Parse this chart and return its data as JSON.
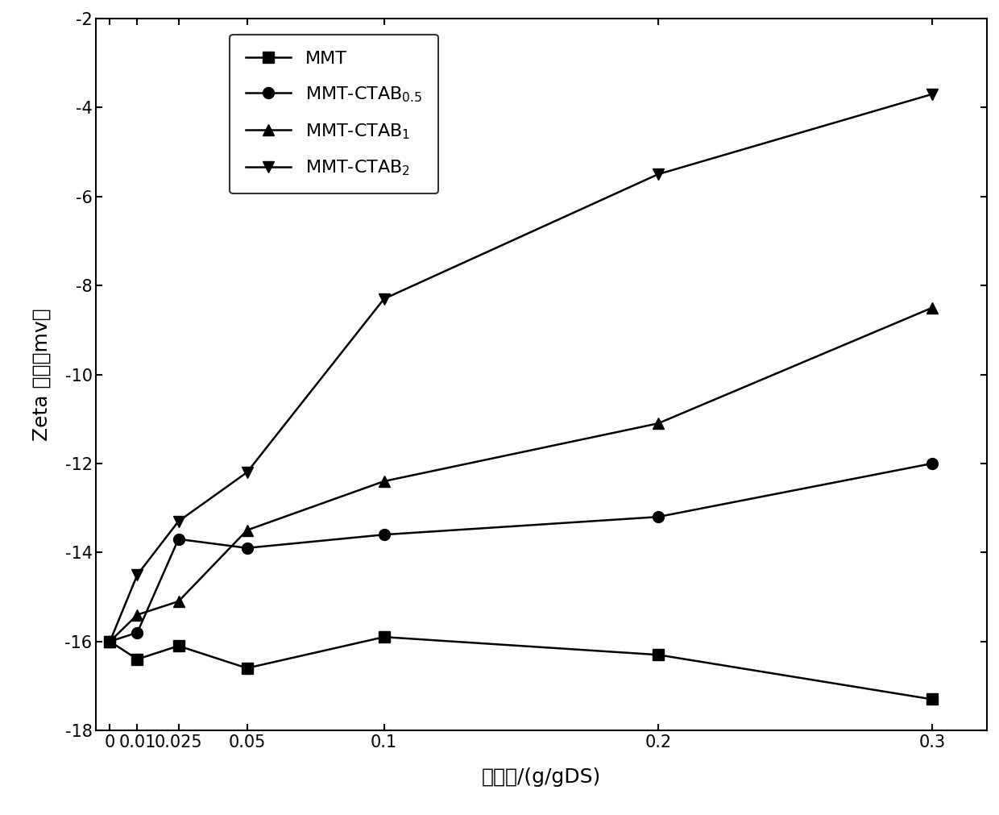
{
  "x": [
    0,
    0.01,
    0.025,
    0.05,
    0.1,
    0.2,
    0.3
  ],
  "MMT": [
    -16.0,
    -16.4,
    -16.1,
    -16.6,
    -15.9,
    -16.3,
    -17.3
  ],
  "MMT_CTAB_0.5": [
    -16.0,
    -15.8,
    -13.7,
    -13.9,
    -13.6,
    -13.2,
    -12.0
  ],
  "MMT_CTAB_1": [
    -16.0,
    -15.4,
    -15.1,
    -13.5,
    -12.4,
    -11.1,
    -8.5
  ],
  "MMT_CTAB_2": [
    -16.0,
    -14.5,
    -13.3,
    -12.2,
    -8.3,
    -5.5,
    -3.7
  ],
  "xlabel": "添加量/(g/gDS)",
  "ylabel": "Zeta 电位（mv）",
  "ylim": [
    -18,
    -2
  ],
  "yticks": [
    -18,
    -16,
    -14,
    -12,
    -10,
    -8,
    -6,
    -4,
    -2
  ],
  "xticks": [
    0,
    0.01,
    0.025,
    0.05,
    0.1,
    0.2,
    0.3
  ],
  "xtick_labels": [
    "0",
    "0.01",
    "0.025",
    "0.05",
    "0.1",
    "0.2",
    "0.3"
  ],
  "ytick_labels": [
    "-18",
    "-16",
    "-14",
    "-12",
    "-10",
    "-8",
    "-6",
    "-4",
    "-2"
  ],
  "legend_labels": [
    "MMT",
    "MMT-CTAB$_{0.5}$",
    "MMT-CTAB$_1$",
    "MMT-CTAB$_2$"
  ],
  "line_color": "black",
  "background_color": "white",
  "axis_fontsize": 18,
  "legend_fontsize": 16,
  "tick_fontsize": 15,
  "linewidth": 1.8,
  "markersize": 10
}
